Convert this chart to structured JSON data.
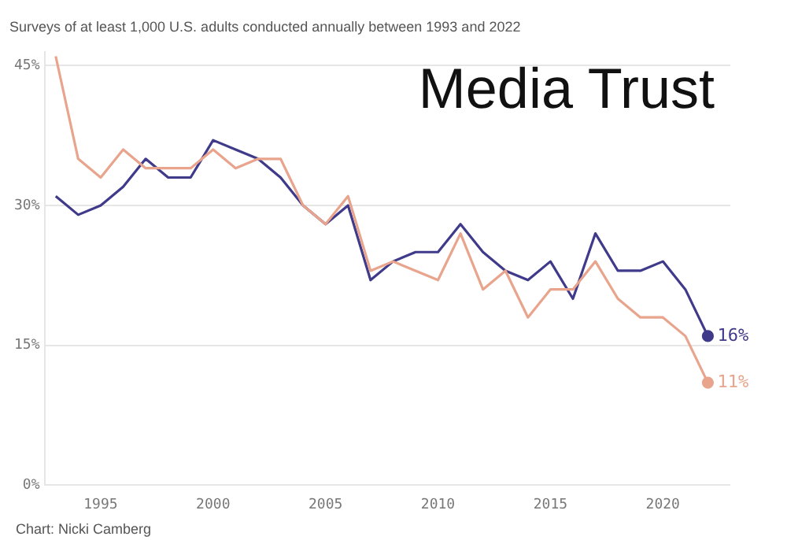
{
  "chart_data": {
    "type": "line",
    "title": "Media Trust",
    "subtitle": "Surveys of at least 1,000 U.S. adults conducted annually between 1993 and 2022",
    "annotations": [
      "Chart: Nicki Camberg"
    ],
    "x": [
      1993,
      1994,
      1995,
      1996,
      1997,
      1998,
      1999,
      2000,
      2001,
      2002,
      2003,
      2004,
      2005,
      2006,
      2007,
      2008,
      2009,
      2010,
      2011,
      2012,
      2013,
      2014,
      2015,
      2016,
      2017,
      2018,
      2019,
      2020,
      2021,
      2022
    ],
    "series": [
      {
        "color": "#e8a48c",
        "values": [
          46,
          35,
          33,
          36,
          34,
          34,
          34,
          36,
          34,
          35,
          35,
          30,
          28,
          31,
          23,
          24,
          23,
          22,
          27,
          21,
          23,
          18,
          21,
          21,
          24,
          20,
          18,
          18,
          16,
          11
        ],
        "value_labels": [
          null,
          null,
          null,
          null,
          null,
          null,
          null,
          null,
          null,
          null,
          null,
          null,
          null,
          null,
          null,
          null,
          null,
          null,
          null,
          null,
          null,
          null,
          null,
          null,
          null,
          null,
          null,
          null,
          null,
          "11%"
        ]
      },
      {
        "color": "#3f3a8a",
        "values": [
          31,
          29,
          30,
          32,
          35,
          33,
          33,
          37,
          36,
          35,
          33,
          30,
          28,
          30,
          22,
          24,
          25,
          25,
          28,
          25,
          23,
          22,
          24,
          20,
          27,
          23,
          23,
          24,
          21,
          16
        ],
        "value_labels": [
          null,
          null,
          null,
          null,
          null,
          null,
          null,
          null,
          null,
          null,
          null,
          null,
          null,
          null,
          null,
          null,
          null,
          null,
          null,
          null,
          null,
          null,
          null,
          null,
          null,
          null,
          null,
          null,
          null,
          "16%"
        ]
      }
    ],
    "xlim": [
      1992.5,
      2023
    ],
    "xticks": [
      1995,
      2000,
      2005,
      2010,
      2015,
      2020
    ],
    "ylim": [
      0,
      46.5
    ],
    "yticks": [
      {
        "value": 0,
        "label": "0%"
      },
      {
        "value": 15,
        "label": "15%"
      },
      {
        "value": 30,
        "label": "30%"
      },
      {
        "value": 45,
        "label": "45%"
      }
    ],
    "grid": "y",
    "legend": false,
    "marker": "none",
    "line_style": "solid"
  }
}
